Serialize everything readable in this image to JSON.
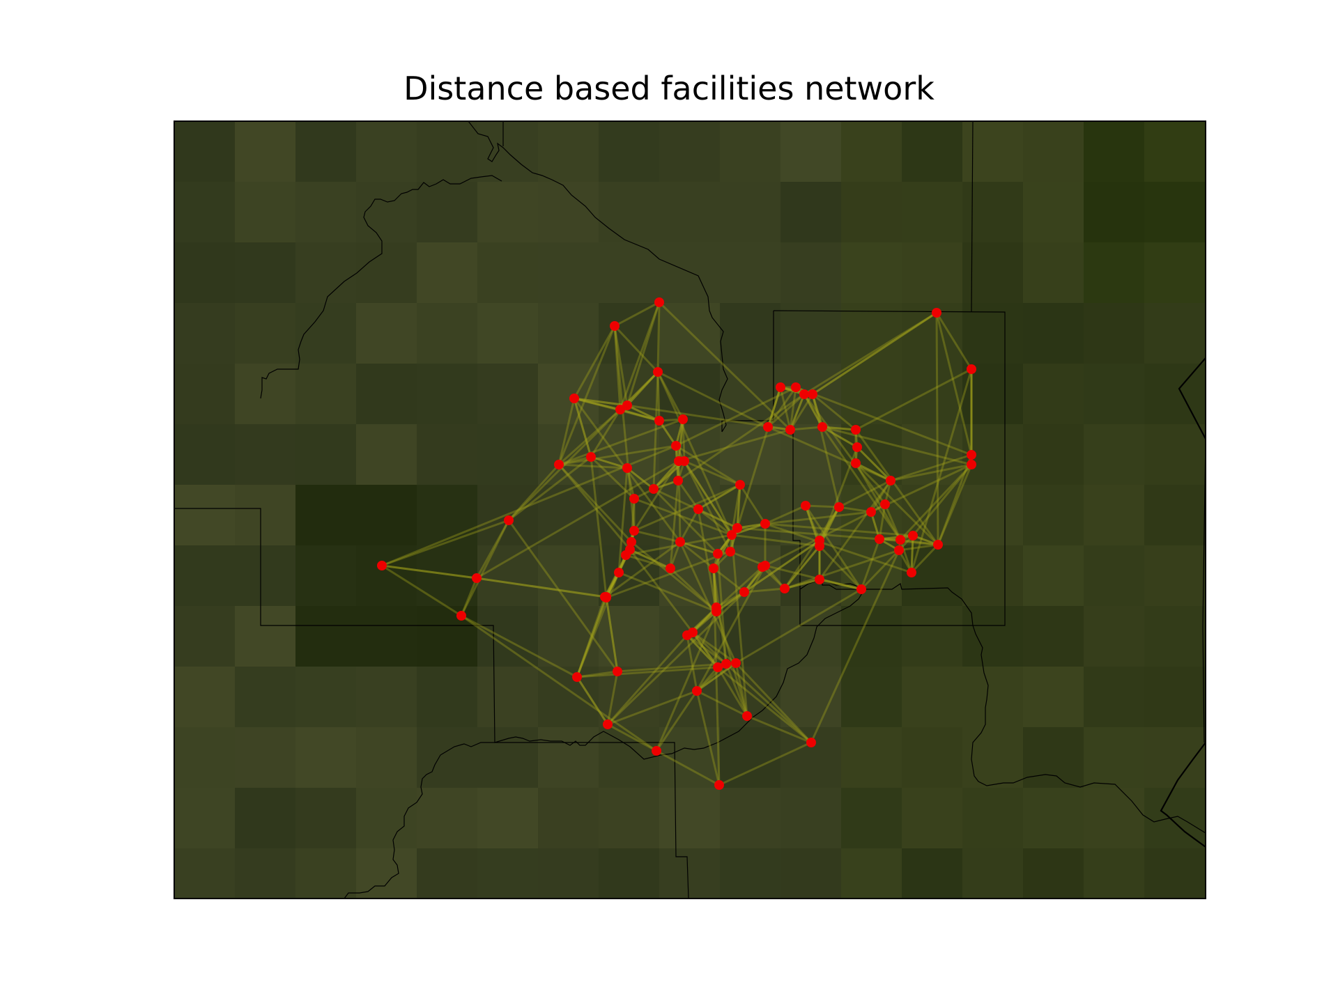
{
  "title": "Distance based facilities network",
  "colors": {
    "background": "#ffffff",
    "map_base": "#343d20",
    "border": "#000000",
    "edge": "#a2a21a",
    "node": "#ee0000"
  },
  "map": {
    "type": "network-map",
    "node_count": 74
  }
}
